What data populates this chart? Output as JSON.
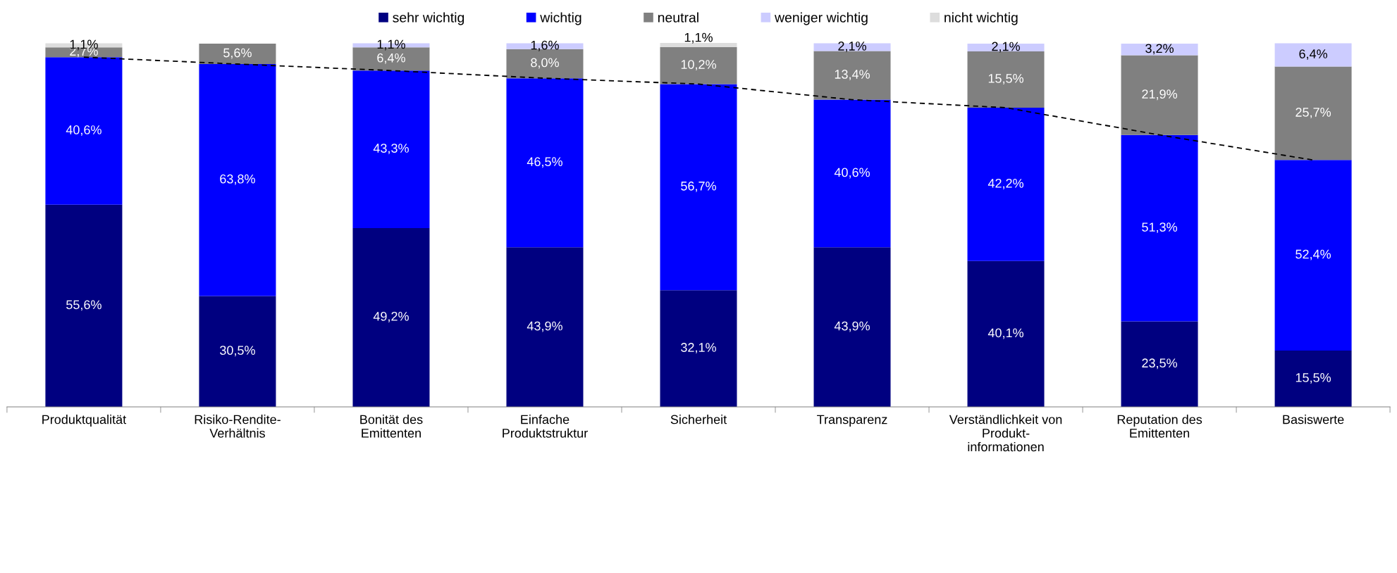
{
  "chart_data": {
    "type": "bar",
    "stacked": true,
    "legend": "top",
    "grid": false,
    "categories": [
      "Produktqualität",
      "Risiko-Rendite-\nVerhältnis",
      "Bonität des\nEmittenten",
      "Einfache\nProduktstruktur",
      "Sicherheit",
      "Transparenz",
      "Verständlichkeit von\nProdukt-\ninformationen",
      "Reputation des\nEmittenten",
      "Basiswerte"
    ],
    "series": [
      {
        "name": "sehr wichtig",
        "color": "#000080",
        "values": [
          55.6,
          30.5,
          49.2,
          43.9,
          32.1,
          43.9,
          40.1,
          23.5,
          15.5
        ],
        "value_labels": [
          "55,6%",
          "30,5%",
          "49,2%",
          "43,9%",
          "32,1%",
          "43,9%",
          "40,1%",
          "23,5%",
          "15,5%"
        ]
      },
      {
        "name": "wichtig",
        "color": "#0000ff",
        "values": [
          40.6,
          63.8,
          43.3,
          46.5,
          56.7,
          40.6,
          42.2,
          51.3,
          52.4
        ],
        "value_labels": [
          "40,6%",
          "63,8%",
          "43,3%",
          "46,5%",
          "56,7%",
          "40,6%",
          "42,2%",
          "51,3%",
          "52,4%"
        ]
      },
      {
        "name": "neutral",
        "color": "#808080",
        "values": [
          2.7,
          5.6,
          6.4,
          8.0,
          10.2,
          13.4,
          15.5,
          21.9,
          25.7
        ],
        "value_labels": [
          "2,7%",
          "5,6%",
          "6,4%",
          "8,0%",
          "10,2%",
          "13,4%",
          "15,5%",
          "21,9%",
          "25,7%"
        ]
      },
      {
        "name": "weniger wichtig",
        "color": "#ccccff",
        "values": [
          null,
          null,
          1.1,
          1.6,
          null,
          2.1,
          2.1,
          3.2,
          6.4
        ],
        "value_labels": [
          null,
          null,
          "1,1%",
          "1,6%",
          null,
          "2,1%",
          "2,1%",
          "3,2%",
          "6,4%"
        ]
      },
      {
        "name": "nicht wichtig",
        "color": "#dddddd",
        "values": [
          1.1,
          null,
          null,
          null,
          1.1,
          null,
          null,
          null,
          null
        ],
        "value_labels": [
          "1,1%",
          null,
          null,
          null,
          "1,1%",
          null,
          null,
          null,
          null
        ]
      },
      {
        "type": "line",
        "color": "#000000",
        "line_style": "dashed",
        "marker": "none",
        "values": [
          96.2,
          94.3,
          92.5,
          90.4,
          88.8,
          84.5,
          82.3,
          74.8,
          67.9
        ]
      }
    ]
  }
}
